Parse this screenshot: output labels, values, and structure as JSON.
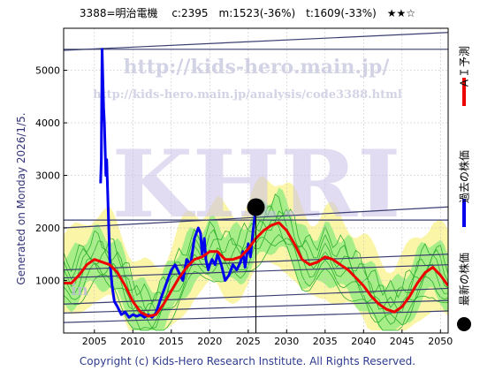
{
  "header": {
    "title": "3388=明治電機　 c:2395　m:1523(-36%)　t:1609(-33%)　★★☆"
  },
  "side": {
    "generated": "Generated on Monday 2026/1/5."
  },
  "legend": {
    "ai_label": "ＡＩ予測",
    "past_label": "過去の株価",
    "latest_label": "最新の株価",
    "ai_color": "#ee0000",
    "past_color": "#0000ee",
    "latest_color": "#000000"
  },
  "watermark": {
    "big": "KHRI",
    "url1": "http://kids-hero.main.jp/",
    "url2": "http://kids-hero.main.jp/analysis/code3388.html",
    "small": "in"
  },
  "footer": {
    "copyright": "Copyright (c) Kids-Hero Research Institute. All Rights Reserved."
  },
  "chart_data": {
    "type": "line",
    "xlim": [
      2001,
      2051
    ],
    "ylim": [
      0,
      5800
    ],
    "x_ticks": [
      2005,
      2010,
      2015,
      2020,
      2025,
      2030,
      2035,
      2040,
      2045,
      2050
    ],
    "y_ticks": [
      1000,
      2000,
      3000,
      4000,
      5000
    ],
    "grid": true,
    "latest": {
      "x": 2026.0,
      "y": 2395
    },
    "series": [
      {
        "name": "過去の株価",
        "color": "#0000ee",
        "points": [
          [
            2005.8,
            2850
          ],
          [
            2005.9,
            3300
          ],
          [
            2006.0,
            5400
          ],
          [
            2006.1,
            4800
          ],
          [
            2006.2,
            4300
          ],
          [
            2006.3,
            4000
          ],
          [
            2006.5,
            3000
          ],
          [
            2006.6,
            3300
          ],
          [
            2006.8,
            2300
          ],
          [
            2007.0,
            1400
          ],
          [
            2007.3,
            900
          ],
          [
            2007.6,
            600
          ],
          [
            2008.0,
            500
          ],
          [
            2008.5,
            350
          ],
          [
            2009.0,
            400
          ],
          [
            2009.5,
            300
          ],
          [
            2010.0,
            350
          ],
          [
            2010.5,
            320
          ],
          [
            2011.0,
            350
          ],
          [
            2011.5,
            300
          ],
          [
            2012.0,
            350
          ],
          [
            2012.5,
            300
          ],
          [
            2013.0,
            380
          ],
          [
            2013.5,
            600
          ],
          [
            2014.0,
            800
          ],
          [
            2014.5,
            1000
          ],
          [
            2015.0,
            1200
          ],
          [
            2015.5,
            1300
          ],
          [
            2016.0,
            1150
          ],
          [
            2016.5,
            1000
          ],
          [
            2017.0,
            1400
          ],
          [
            2017.5,
            1300
          ],
          [
            2018.0,
            1800
          ],
          [
            2018.5,
            2000
          ],
          [
            2018.8,
            1900
          ],
          [
            2019.0,
            1500
          ],
          [
            2019.3,
            1800
          ],
          [
            2019.5,
            1400
          ],
          [
            2019.8,
            1200
          ],
          [
            2020.0,
            1300
          ],
          [
            2020.3,
            1400
          ],
          [
            2020.7,
            1300
          ],
          [
            2021.0,
            1500
          ],
          [
            2021.5,
            1300
          ],
          [
            2022.0,
            1000
          ],
          [
            2022.5,
            1100
          ],
          [
            2023.0,
            1300
          ],
          [
            2023.5,
            1200
          ],
          [
            2024.0,
            1350
          ],
          [
            2024.3,
            1550
          ],
          [
            2024.6,
            1250
          ],
          [
            2025.0,
            1700
          ],
          [
            2025.3,
            1450
          ],
          [
            2025.6,
            1900
          ],
          [
            2026.0,
            2395
          ]
        ]
      },
      {
        "name": "ＡＩ予測",
        "color": "#ee0000",
        "points": [
          [
            2001,
            950
          ],
          [
            2002,
            950
          ],
          [
            2003,
            1100
          ],
          [
            2004,
            1300
          ],
          [
            2005,
            1400
          ],
          [
            2006,
            1350
          ],
          [
            2007,
            1300
          ],
          [
            2008,
            1150
          ],
          [
            2009,
            900
          ],
          [
            2010,
            600
          ],
          [
            2011,
            400
          ],
          [
            2012,
            320
          ],
          [
            2013,
            350
          ],
          [
            2014,
            550
          ],
          [
            2015,
            800
          ],
          [
            2016,
            1050
          ],
          [
            2017,
            1250
          ],
          [
            2018,
            1400
          ],
          [
            2019,
            1450
          ],
          [
            2020,
            1550
          ],
          [
            2021,
            1550
          ],
          [
            2022,
            1400
          ],
          [
            2023,
            1400
          ],
          [
            2024,
            1450
          ],
          [
            2025,
            1600
          ],
          [
            2026,
            1800
          ],
          [
            2027,
            1950
          ],
          [
            2028,
            2050
          ],
          [
            2029,
            2100
          ],
          [
            2030,
            1950
          ],
          [
            2031,
            1700
          ],
          [
            2032,
            1400
          ],
          [
            2033,
            1300
          ],
          [
            2034,
            1350
          ],
          [
            2035,
            1450
          ],
          [
            2036,
            1400
          ],
          [
            2037,
            1300
          ],
          [
            2038,
            1200
          ],
          [
            2039,
            1050
          ],
          [
            2040,
            900
          ],
          [
            2041,
            700
          ],
          [
            2042,
            550
          ],
          [
            2043,
            450
          ],
          [
            2044,
            400
          ],
          [
            2045,
            500
          ],
          [
            2046,
            700
          ],
          [
            2047,
            950
          ],
          [
            2048,
            1150
          ],
          [
            2049,
            1250
          ],
          [
            2050,
            1100
          ],
          [
            2051,
            900
          ]
        ]
      }
    ]
  }
}
